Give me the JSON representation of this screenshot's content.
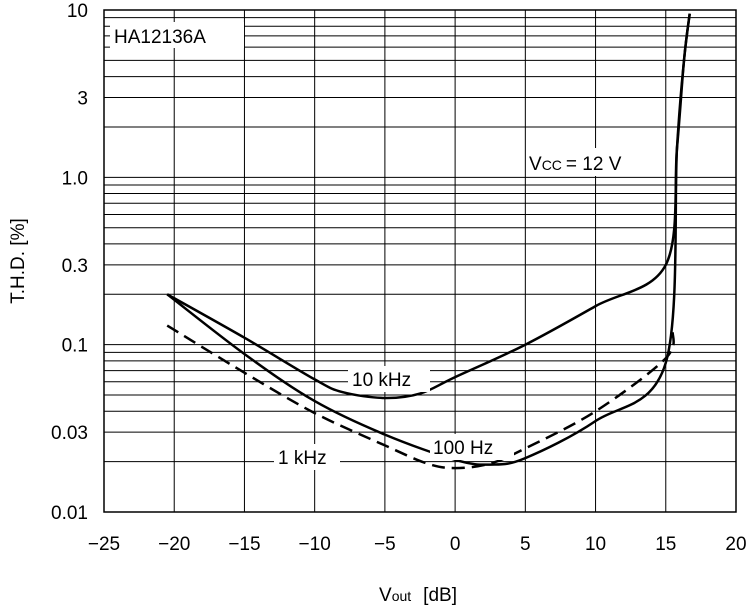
{
  "chart_data": {
    "type": "line",
    "title": "",
    "chart_label": "HA12136A",
    "xlabel": {
      "main": "V",
      "sub": "out",
      "unit": "[dB]"
    },
    "ylabel": "T.H.D. [%]",
    "annotation": {
      "main": "V",
      "sub": "CC",
      "rest": "= 12 V"
    },
    "xlim": [
      -25,
      20
    ],
    "ylim": [
      0.01,
      10
    ],
    "yscale": "log",
    "grid": true,
    "x_ticks": [
      {
        "v": -25,
        "label": "−25"
      },
      {
        "v": -20,
        "label": "−20"
      },
      {
        "v": -15,
        "label": "−15"
      },
      {
        "v": -10,
        "label": "−10"
      },
      {
        "v": -5,
        "label": "−5"
      },
      {
        "v": 0,
        "label": "0"
      },
      {
        "v": 5,
        "label": "5"
      },
      {
        "v": 10,
        "label": "10"
      },
      {
        "v": 15,
        "label": "15"
      },
      {
        "v": 20,
        "label": "20"
      }
    ],
    "y_ticks": [
      {
        "v": 10,
        "label": "10"
      },
      {
        "v": 3,
        "label": "3"
      },
      {
        "v": 1.0,
        "label": "1.0"
      },
      {
        "v": 0.3,
        "label": "0.3"
      },
      {
        "v": 0.1,
        "label": "0.1"
      },
      {
        "v": 0.03,
        "label": "0.03"
      },
      {
        "v": 0.01,
        "label": "0.01"
      }
    ],
    "series": [
      {
        "name": "10 kHz",
        "style": "solid",
        "points": [
          [
            -20.5,
            0.2
          ],
          [
            -15,
            0.11
          ],
          [
            -10,
            0.062
          ],
          [
            -8,
            0.052
          ],
          [
            -5,
            0.048
          ],
          [
            -2.5,
            0.051
          ],
          [
            0,
            0.064
          ],
          [
            5,
            0.1
          ],
          [
            10,
            0.17
          ],
          [
            15,
            0.3
          ],
          [
            15.8,
            1.5
          ],
          [
            16.3,
            5
          ],
          [
            16.7,
            9.5
          ]
        ]
      },
      {
        "name": "100 Hz",
        "style": "solid",
        "points": [
          [
            -20.5,
            0.2
          ],
          [
            -15,
            0.088
          ],
          [
            -10,
            0.046
          ],
          [
            -5,
            0.029
          ],
          [
            0,
            0.0205
          ],
          [
            2.5,
            0.0192
          ],
          [
            5,
            0.021
          ],
          [
            10,
            0.035
          ],
          [
            15,
            0.078
          ],
          [
            15.8,
            1.5
          ],
          [
            16.3,
            5
          ],
          [
            16.7,
            9.5
          ]
        ]
      },
      {
        "name": "1 kHz",
        "style": "dashed",
        "points": [
          [
            -20.5,
            0.13
          ],
          [
            -15,
            0.068
          ],
          [
            -10,
            0.039
          ],
          [
            -5,
            0.025
          ],
          [
            -2,
            0.0195
          ],
          [
            0,
            0.0183
          ],
          [
            2.5,
            0.0195
          ],
          [
            5,
            0.024
          ],
          [
            10,
            0.04
          ],
          [
            15,
            0.083
          ],
          [
            15.5,
            0.12
          ]
        ]
      }
    ]
  }
}
